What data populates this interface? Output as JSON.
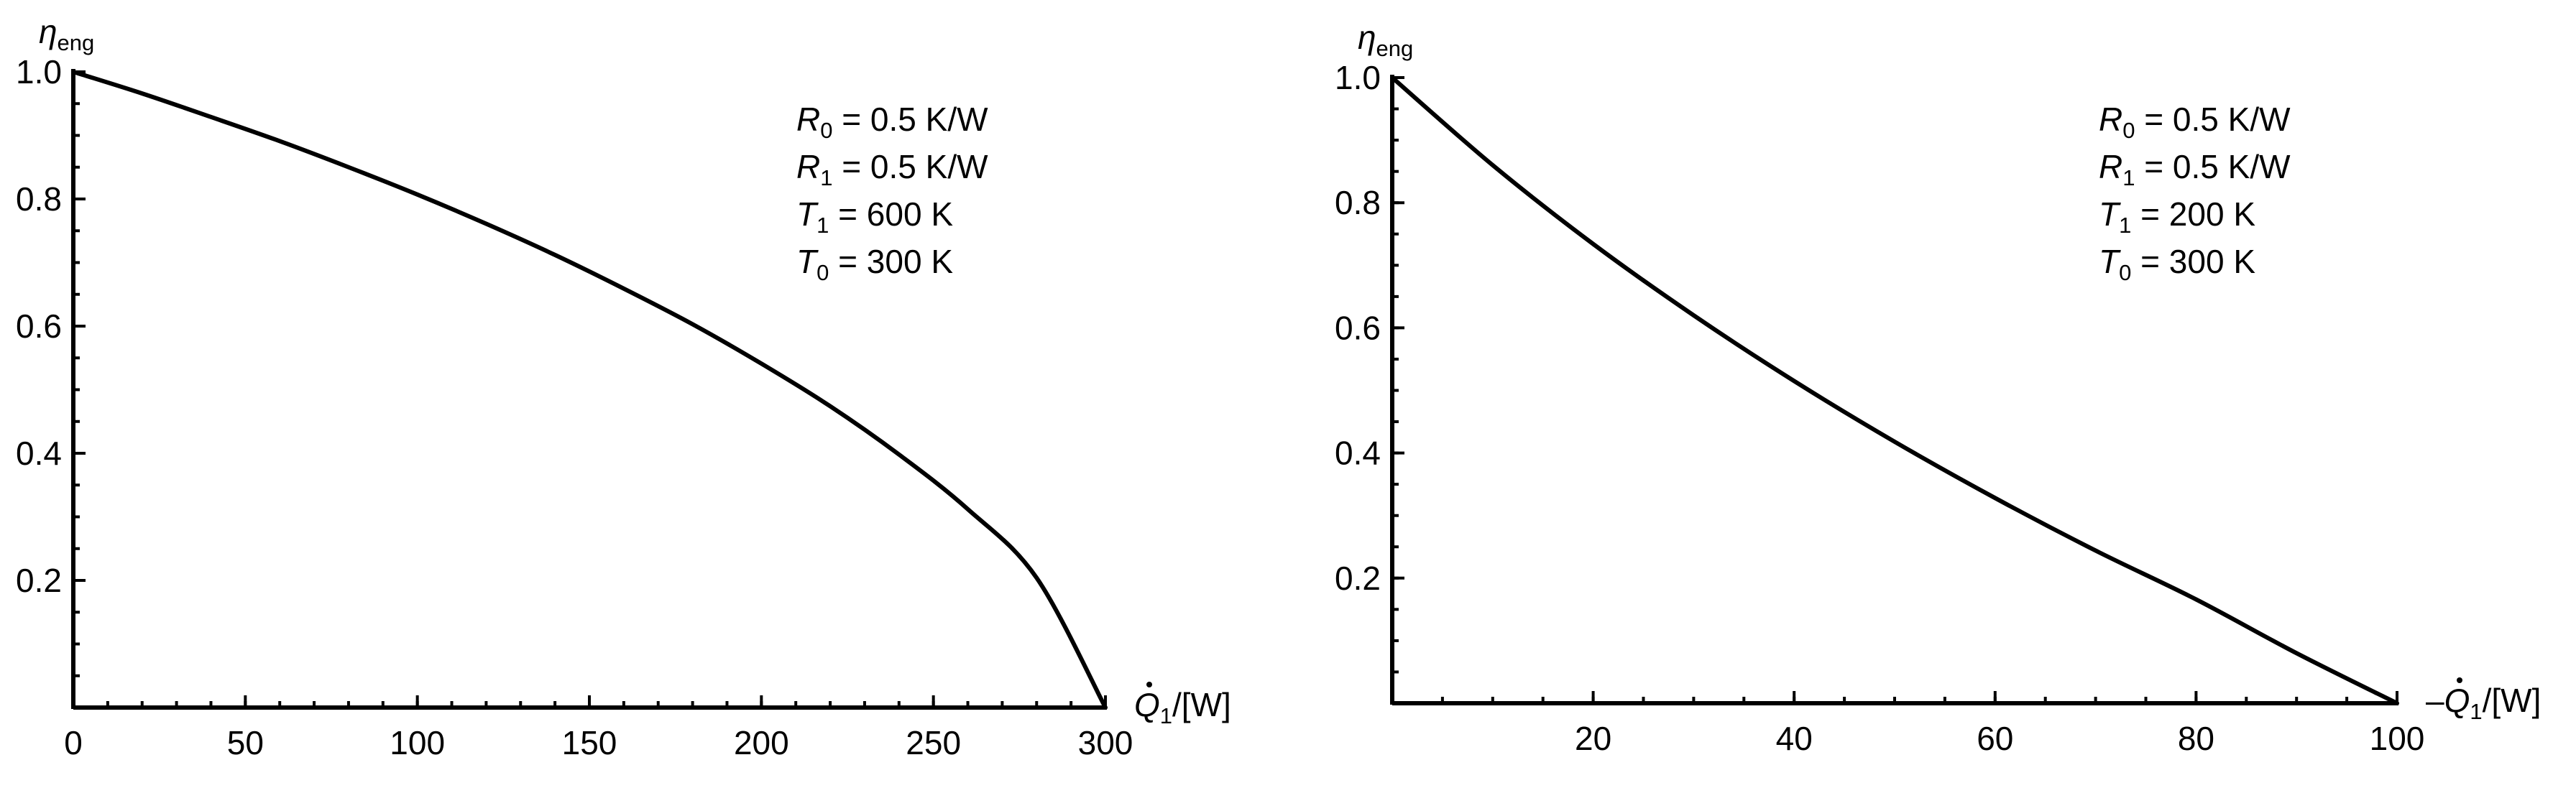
{
  "chart_data": [
    {
      "type": "line",
      "ylabel": {
        "sym": "η",
        "sub": "eng"
      },
      "xlabel": {
        "prefix": "",
        "sym": "Q",
        "sub": "1",
        "suffix": "/[W]",
        "dot": true
      },
      "xlim": [
        0,
        300
      ],
      "ylim": [
        0,
        1.0
      ],
      "x_ticks": [
        0,
        50,
        100,
        150,
        200,
        250,
        300
      ],
      "x_tick_labels": [
        "0",
        "50",
        "100",
        "150",
        "200",
        "250",
        "300"
      ],
      "y_ticks": [
        0.2,
        0.4,
        0.6,
        0.8,
        1.0
      ],
      "y_tick_labels": [
        "0.2",
        "0.4",
        "0.6",
        "0.8",
        "1.0"
      ],
      "x_minor_step": 10,
      "y_minor_step": 0.05,
      "annotations": [
        {
          "sym": "R",
          "sub": "0",
          "rest": " = 0.5 K/W"
        },
        {
          "sym": "R",
          "sub": "1",
          "rest": " = 0.5 K/W"
        },
        {
          "sym": "T",
          "sub": "1",
          "rest": " = 600 K"
        },
        {
          "sym": "T",
          "sub": "0",
          "rest": " = 300 K"
        }
      ],
      "series": [
        {
          "color": "#000000",
          "x": [
            0,
            20,
            40,
            60,
            80,
            100,
            120,
            140,
            160,
            180,
            200,
            220,
            240,
            260,
            280,
            300
          ],
          "y": [
            1.0,
            0.966,
            0.929,
            0.891,
            0.85,
            0.807,
            0.761,
            0.712,
            0.659,
            0.603,
            0.541,
            0.474,
            0.398,
            0.312,
            0.204,
            0.0
          ]
        }
      ]
    },
    {
      "type": "line",
      "ylabel": {
        "sym": "η",
        "sub": "eng"
      },
      "xlabel": {
        "prefix": "–",
        "sym": "Q",
        "sub": "1",
        "suffix": "/[W]",
        "dot": true
      },
      "xlim": [
        0,
        100
      ],
      "ylim": [
        0,
        1.0
      ],
      "x_ticks": [
        20,
        40,
        60,
        80,
        100
      ],
      "x_tick_labels": [
        "20",
        "40",
        "60",
        "80",
        "100"
      ],
      "y_ticks": [
        0.2,
        0.4,
        0.6,
        0.8,
        1.0
      ],
      "y_tick_labels": [
        "0.2",
        "0.4",
        "0.6",
        "0.8",
        "1.0"
      ],
      "x_minor_step": 5,
      "y_minor_step": 0.05,
      "annotations": [
        {
          "sym": "R",
          "sub": "0",
          "rest": " = 0.5 K/W"
        },
        {
          "sym": "R",
          "sub": "1",
          "rest": " = 0.5 K/W"
        },
        {
          "sym": "T",
          "sub": "1",
          "rest": " = 200 K"
        },
        {
          "sym": "T",
          "sub": "0",
          "rest": " = 300 K"
        }
      ],
      "series": [
        {
          "color": "#000000",
          "x": [
            0,
            10,
            20,
            30,
            40,
            50,
            60,
            70,
            80,
            90,
            100
          ],
          "y": [
            1.0,
            0.86,
            0.734,
            0.62,
            0.515,
            0.418,
            0.328,
            0.244,
            0.166,
            0.08,
            0.0
          ]
        }
      ]
    }
  ]
}
